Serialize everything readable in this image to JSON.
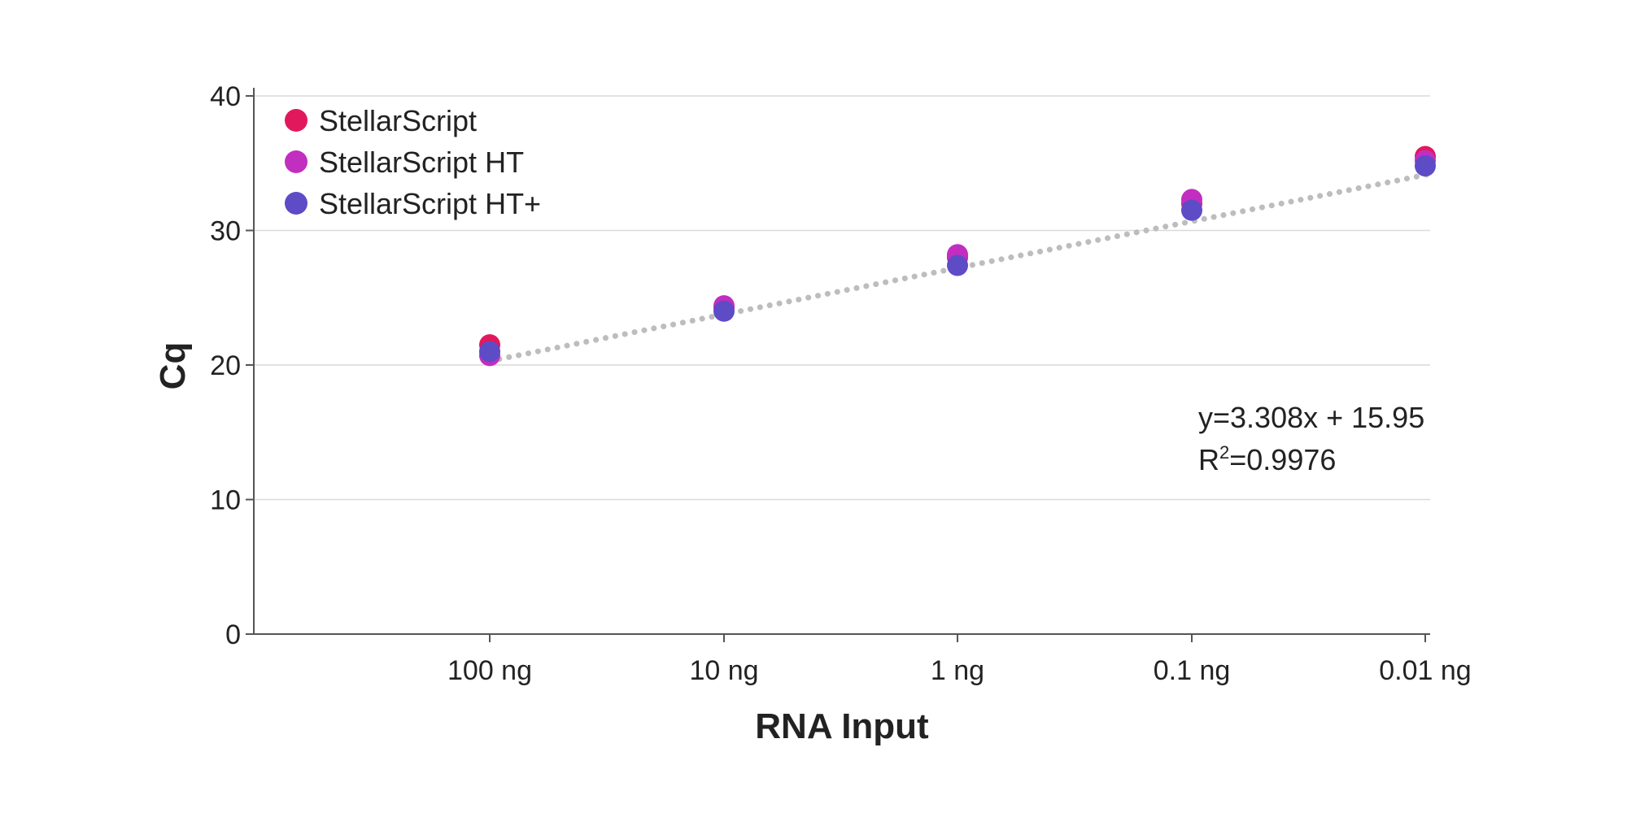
{
  "chart_data": {
    "type": "scatter",
    "title": "",
    "xlabel": "RNA Input",
    "ylabel": "Cq",
    "categories": [
      "100 ng",
      "10 ng",
      "1 ng",
      "0.1 ng",
      "0.01 ng"
    ],
    "ylim": [
      0,
      40
    ],
    "yticks": [
      0,
      10,
      20,
      30,
      40
    ],
    "grid": true,
    "legend_position": "top-left",
    "series": [
      {
        "name": "StellarScript",
        "color": "#e2185c",
        "values": [
          21.5,
          24.3,
          28.0,
          32.0,
          35.5
        ]
      },
      {
        "name": "StellarScript HT",
        "color": "#c22ebf",
        "values": [
          20.7,
          24.4,
          28.2,
          32.3,
          35.2
        ]
      },
      {
        "name": "StellarScript HT+",
        "color": "#5e4bc6",
        "values": [
          21.0,
          24.0,
          27.4,
          31.5,
          34.8
        ]
      }
    ],
    "trendline": {
      "style": "dotted",
      "color": "#bdbdbd",
      "slope": 3.308,
      "intercept": 15.95,
      "start_value": 20.3,
      "end_value": 34.2
    },
    "annotations": {
      "equation": "y=3.308x + 15.95",
      "r2_prefix": "R",
      "r2_sup": "2",
      "r2_value": "=0.9976"
    }
  }
}
